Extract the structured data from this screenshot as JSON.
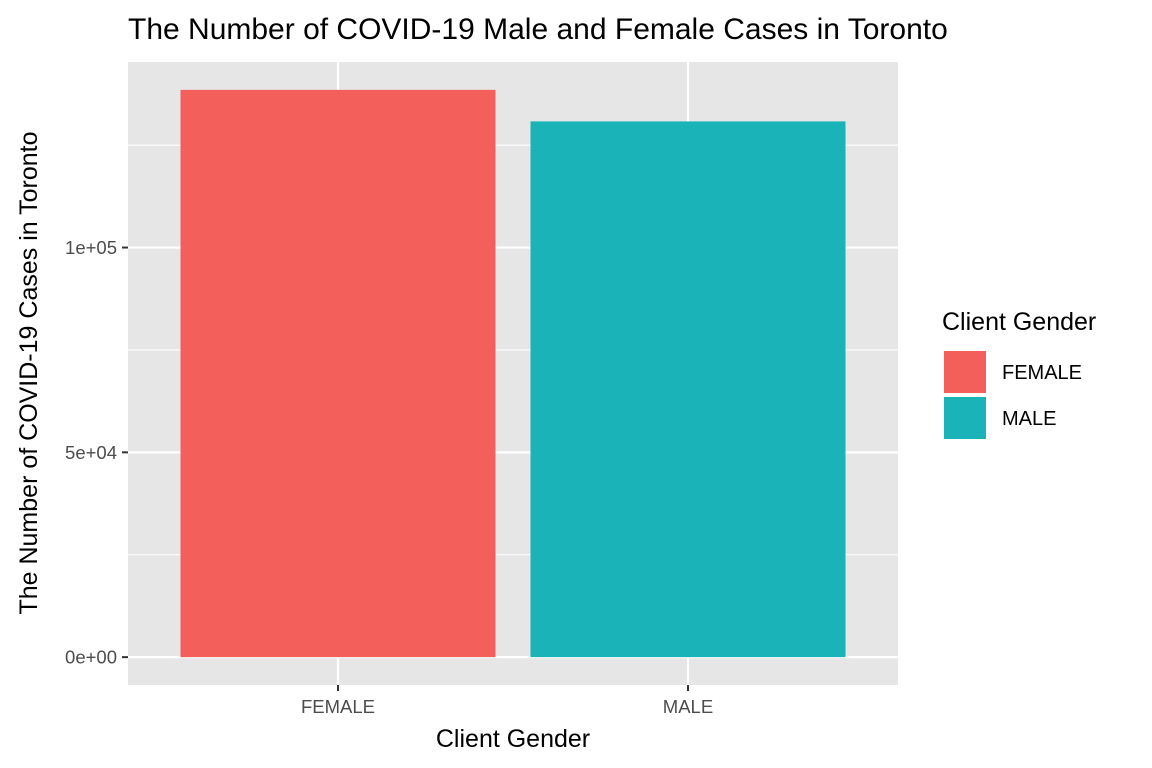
{
  "chart_data": {
    "type": "bar",
    "title": "The Number of COVID-19 Male and Female Cases in Toronto",
    "xlabel": "Client Gender",
    "ylabel": "The Number of COVID-19 Cases in Toronto",
    "categories": [
      "FEMALE",
      "MALE"
    ],
    "values": [
      138500,
      130800
    ],
    "colors": [
      "#F35F5A",
      "#1AB3B8"
    ],
    "ylim": [
      -6800,
      145300
    ],
    "y_ticks": [
      0,
      50000,
      100000
    ],
    "y_tick_labels": [
      "0e+00",
      "5e+04",
      "1e+05"
    ],
    "grid": true,
    "legend": {
      "title": "Client Gender",
      "position": "right",
      "entries": [
        "FEMALE",
        "MALE"
      ]
    }
  }
}
